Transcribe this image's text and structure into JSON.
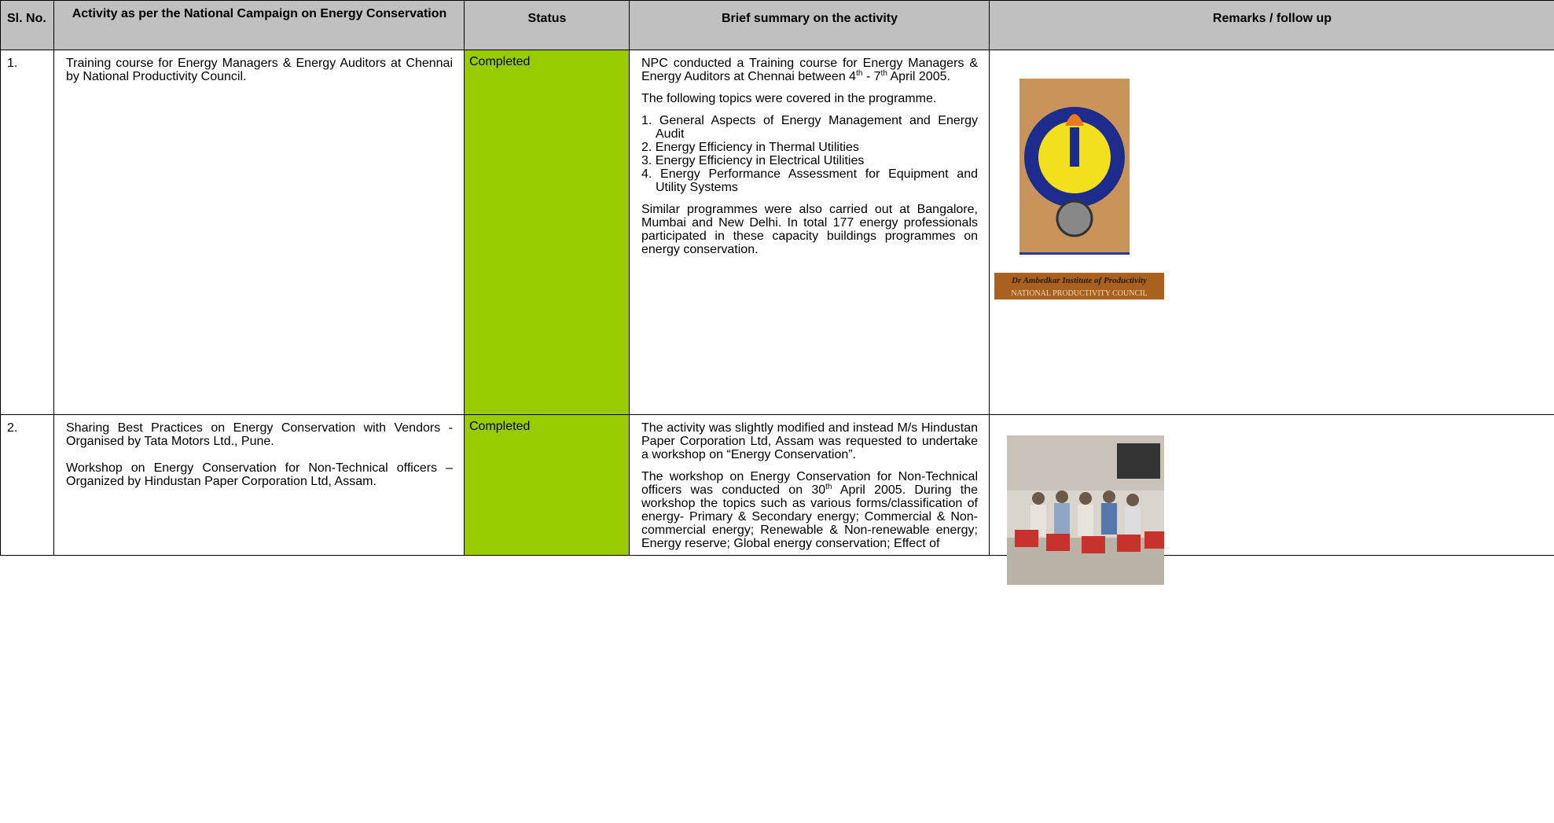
{
  "table": {
    "headers": [
      "Sl. No.",
      "Activity as per the National Campaign on Energy Conservation",
      "Status",
      "Brief summary on the activity",
      "Remarks / follow up"
    ],
    "rows": [
      {
        "no": "1.",
        "activity": [
          "Training course for Energy Managers & Energy Auditors at Chennai by National Productivity Council."
        ],
        "status": "Completed",
        "summary": {
          "intro": [
            "NPC conducted a Training course for Energy Managers & Energy Auditors at Chennai between 4",
            "th",
            " - 7",
            "th",
            " April 2005."
          ],
          "lead": "The following topics were covered in the programme.",
          "items": [
            "1. General Aspects of Energy Management and Energy Audit",
            "2. Energy Efficiency in Thermal Utilities",
            "3. Energy Efficiency in Electrical Utilities",
            "4. Energy Performance Assessment for Equipment and Utility Systems"
          ],
          "closing": "Similar programmes were also carried out at Bangalore, Mumbai and New Delhi. In total 177 energy professionals participated in these capacity buildings programmes on energy conservation."
        },
        "remarks": {
          "caption": [
            "Dr Ambedkar Institute of Productivity",
            "NATIONAL PRODUCTIVITY COUNCIL"
          ]
        }
      },
      {
        "no": "2.",
        "activity": [
          "Sharing Best Practices on Energy Conservation with Vendors - Organised by Tata Motors Ltd., Pune.",
          "Workshop on Energy Conservation for Non-Technical officers – Organized by Hindustan Paper Corporation Ltd, Assam."
        ],
        "status": "Completed",
        "summary": {
          "intro": "The activity was slightly modified and instead M/s Hindustan Paper Corporation Ltd, Assam was requested to undertake a workshop on “Energy Conservation”.",
          "body": [
            "The workshop on Energy Conservation for Non-Technical officers was conducted on 30",
            "th",
            " April 2005. During the workshop the topics such as various forms/classification of energy- Primary & Secondary energy; Commercial & Non-commercial energy; Renewable & Non-renewable energy; Energy reserve; Global energy conservation; Effect of"
          ]
        }
      }
    ]
  }
}
